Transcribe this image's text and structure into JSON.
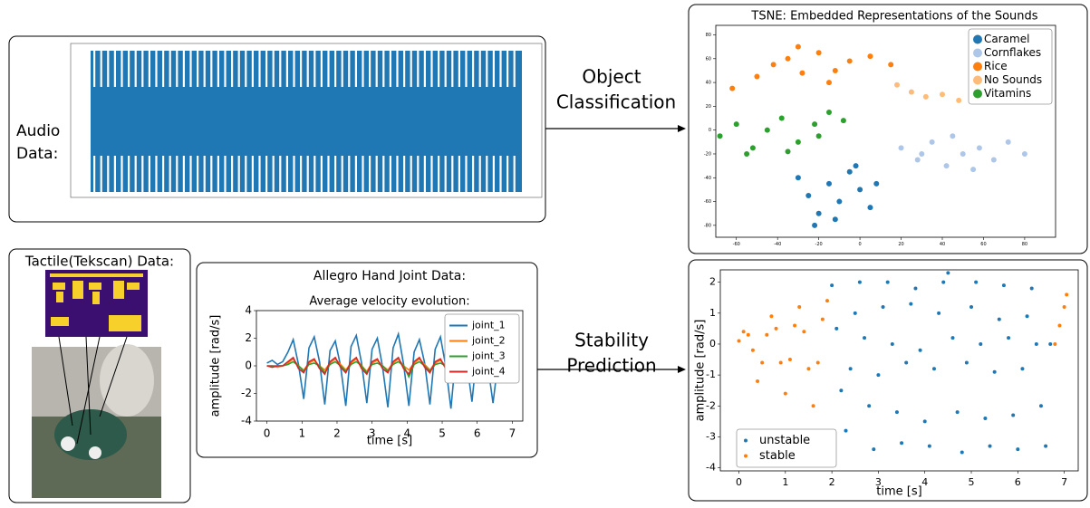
{
  "audio": {
    "label_lines": [
      "Audio",
      "Data:"
    ]
  },
  "classification_arrow": {
    "lines": [
      "Object",
      "Classification"
    ]
  },
  "stability_arrow": {
    "lines": [
      "Stability",
      "Prediction"
    ]
  },
  "tactile": {
    "title": "Tactile(Tekscan) Data:"
  },
  "chart_data": [
    {
      "type": "scatter",
      "title": "TSNE: Embedded Representations of the Sounds",
      "xlim": [
        -70,
        95
      ],
      "ylim": [
        -90,
        88
      ],
      "xticks": [
        -60,
        -40,
        -20,
        0,
        20,
        40,
        60,
        80
      ],
      "yticks": [
        -80,
        -60,
        -40,
        -20,
        0,
        20,
        40,
        60,
        80
      ],
      "legend": "upper right",
      "series": [
        {
          "name": "Caramel",
          "color": "#1f77b4",
          "x": [
            -30,
            -25,
            -20,
            -15,
            -10,
            -5,
            0,
            5,
            -22,
            -12,
            -2,
            8
          ],
          "y": [
            -40,
            -55,
            -70,
            -45,
            -60,
            -35,
            -50,
            -65,
            -80,
            -75,
            -30,
            -45
          ]
        },
        {
          "name": "Cornflakes",
          "color": "#aec7e8",
          "x": [
            20,
            28,
            35,
            42,
            50,
            58,
            65,
            72,
            80,
            45,
            55,
            30
          ],
          "y": [
            -15,
            -25,
            -10,
            -30,
            -20,
            -15,
            -25,
            -10,
            -20,
            -5,
            -33,
            -20
          ]
        },
        {
          "name": "Rice",
          "color": "#ff7f0e",
          "x": [
            -50,
            -42,
            -35,
            -28,
            -20,
            -12,
            -5,
            5,
            15,
            -30,
            -15,
            -62
          ],
          "y": [
            45,
            55,
            60,
            48,
            65,
            50,
            58,
            62,
            55,
            70,
            40,
            35
          ]
        },
        {
          "name": "No Sounds",
          "color": "#ffbb78",
          "x": [
            18,
            25,
            32,
            40,
            48,
            55,
            62,
            70,
            78,
            85,
            60,
            72
          ],
          "y": [
            38,
            32,
            28,
            30,
            25,
            55,
            48,
            52,
            45,
            40,
            30,
            58
          ]
        },
        {
          "name": "Vitamins",
          "color": "#2ca02c",
          "x": [
            -68,
            -60,
            -52,
            -45,
            -38,
            -30,
            -22,
            -15,
            -8,
            -55,
            -35,
            -20
          ],
          "y": [
            -5,
            5,
            -15,
            0,
            10,
            -10,
            5,
            15,
            8,
            -20,
            -18,
            -5
          ]
        }
      ]
    },
    {
      "type": "line",
      "title": "Allegro Hand Joint Data:",
      "subtitle": "Average velocity evolution:",
      "x_label": "time [s]",
      "y_label": "amplitude [rad/s]",
      "xlim": [
        -0.3,
        7.3
      ],
      "ylim": [
        -4,
        4
      ],
      "xticks": [
        0,
        1,
        2,
        3,
        4,
        5,
        6,
        7
      ],
      "yticks": [
        -4,
        -2,
        0,
        2,
        4
      ],
      "legend": "upper right",
      "x": [
        0,
        0.15,
        0.3,
        0.45,
        0.6,
        0.75,
        0.9,
        1.05,
        1.2,
        1.35,
        1.5,
        1.65,
        1.8,
        1.95,
        2.1,
        2.25,
        2.4,
        2.55,
        2.7,
        2.85,
        3,
        3.15,
        3.3,
        3.45,
        3.6,
        3.75,
        3.9,
        4.05,
        4.2,
        4.35,
        4.5,
        4.65,
        4.8,
        4.95,
        5.1,
        5.25,
        5.4,
        5.55,
        5.7,
        5.85,
        6,
        6.15,
        6.3,
        6.45,
        6.6
      ],
      "series": [
        {
          "name": "joint_1",
          "color": "#1f77b4",
          "values": [
            0.2,
            0.4,
            0.1,
            0.3,
            1.0,
            1.9,
            0.1,
            -2.4,
            1.3,
            2.1,
            0.3,
            -2.8,
            1.1,
            1.8,
            0.0,
            -2.9,
            1.4,
            2.2,
            0.2,
            -2.7,
            1.2,
            2.0,
            -0.1,
            -3.0,
            1.3,
            2.3,
            0.1,
            -2.9,
            1.0,
            1.9,
            0.2,
            -2.8,
            1.2,
            2.1,
            0.0,
            -3.1,
            1.1,
            1.8,
            0.3,
            -2.6,
            1.2,
            2.0,
            0.1,
            -2.7,
            0.4
          ]
        },
        {
          "name": "joint_2",
          "color": "#ff7f0e",
          "values": [
            0.0,
            0.0,
            -0.1,
            0.0,
            0.2,
            0.5,
            0.0,
            -0.3,
            0.2,
            0.4,
            0.0,
            -0.3,
            0.2,
            0.5,
            0.1,
            -0.3,
            0.2,
            0.5,
            0.0,
            -0.4,
            0.2,
            0.4,
            0.0,
            -0.3,
            0.2,
            0.5,
            0.0,
            -0.3,
            0.2,
            0.5,
            0.1,
            -0.3,
            0.2,
            0.4,
            0.0,
            -0.3,
            0.2,
            0.5,
            0.0,
            -0.3,
            0.2,
            0.5,
            0.0,
            -0.3,
            0.0
          ]
        },
        {
          "name": "joint_3",
          "color": "#2ca02c",
          "values": [
            0.0,
            0.0,
            0.0,
            0.0,
            0.1,
            0.3,
            0.0,
            -0.4,
            0.1,
            0.2,
            0.0,
            -0.5,
            0.1,
            0.3,
            0.0,
            -0.4,
            0.1,
            0.3,
            0.0,
            -0.5,
            0.1,
            0.2,
            0.0,
            -0.4,
            0.1,
            0.3,
            0.0,
            -0.8,
            0.1,
            0.3,
            0.0,
            -0.4,
            0.1,
            0.2,
            0.0,
            -0.5,
            0.1,
            0.3,
            0.0,
            -0.4,
            0.1,
            0.3,
            0.0,
            -0.4,
            0.0
          ]
        },
        {
          "name": "joint_4",
          "color": "#d62728",
          "values": [
            0.0,
            -0.1,
            0.0,
            0.0,
            0.3,
            0.6,
            -0.2,
            -0.5,
            0.3,
            0.5,
            -0.2,
            -0.6,
            0.3,
            0.6,
            -0.1,
            -0.5,
            0.3,
            0.6,
            -0.2,
            -0.6,
            0.3,
            0.5,
            -0.2,
            -0.5,
            0.3,
            0.6,
            -0.2,
            -0.6,
            0.3,
            0.6,
            -0.1,
            -0.5,
            0.3,
            0.5,
            -0.2,
            -0.6,
            0.3,
            0.6,
            -0.2,
            -0.5,
            0.3,
            0.6,
            -0.2,
            -0.5,
            0.0
          ]
        }
      ]
    },
    {
      "type": "scatter",
      "x_label": "time [s]",
      "y_label": "amplitude [rad/s]",
      "xlim": [
        -0.4,
        7.3
      ],
      "ylim": [
        -4.1,
        2.4
      ],
      "xticks": [
        0,
        1,
        2,
        3,
        4,
        5,
        6,
        7
      ],
      "yticks": [
        -4,
        -3,
        -2,
        -1,
        0,
        1,
        2
      ],
      "legend": "lower left",
      "series": [
        {
          "name": "unstable",
          "color": "#1f77b4",
          "x": [
            2.0,
            2.1,
            2.2,
            2.3,
            2.4,
            2.5,
            2.6,
            2.7,
            2.8,
            2.9,
            3.0,
            3.1,
            3.2,
            3.3,
            3.4,
            3.5,
            3.6,
            3.7,
            3.8,
            3.9,
            4.0,
            4.1,
            4.2,
            4.3,
            4.4,
            4.5,
            4.6,
            4.7,
            4.8,
            4.9,
            5.0,
            5.1,
            5.2,
            5.3,
            5.4,
            5.5,
            5.6,
            5.7,
            5.8,
            5.9,
            6.0,
            6.1,
            6.2,
            6.3,
            6.4,
            6.5,
            6.6,
            6.7
          ],
          "y": [
            1.9,
            0.5,
            -1.5,
            -2.8,
            -0.8,
            1.0,
            2.0,
            0.2,
            -2.0,
            -3.4,
            -1.0,
            1.2,
            2.0,
            0.0,
            -2.2,
            -3.2,
            -0.6,
            1.3,
            1.8,
            -0.2,
            -2.5,
            -3.3,
            -0.8,
            1.0,
            2.0,
            2.3,
            0.2,
            -2.2,
            -3.5,
            -0.6,
            1.2,
            2.0,
            0.0,
            -2.4,
            -3.3,
            -0.9,
            0.8,
            1.9,
            0.2,
            -2.3,
            -3.4,
            -0.8,
            0.9,
            1.8,
            0.0,
            -2.0,
            -3.3,
            0.0
          ]
        },
        {
          "name": "stable",
          "color": "#ff7f0e",
          "x": [
            0.0,
            0.1,
            0.2,
            0.3,
            0.4,
            0.5,
            0.6,
            0.7,
            0.8,
            0.9,
            1.0,
            1.1,
            1.2,
            1.3,
            1.4,
            1.5,
            1.6,
            1.7,
            1.8,
            1.9,
            6.8,
            6.9,
            7.0,
            7.05
          ],
          "y": [
            0.1,
            0.4,
            0.3,
            -0.2,
            -1.2,
            -0.6,
            0.3,
            0.9,
            0.5,
            -0.6,
            -1.6,
            -0.5,
            0.6,
            1.2,
            0.4,
            -0.8,
            -2.0,
            -0.6,
            0.8,
            1.4,
            0.0,
            0.6,
            1.2,
            1.6
          ]
        }
      ]
    }
  ]
}
